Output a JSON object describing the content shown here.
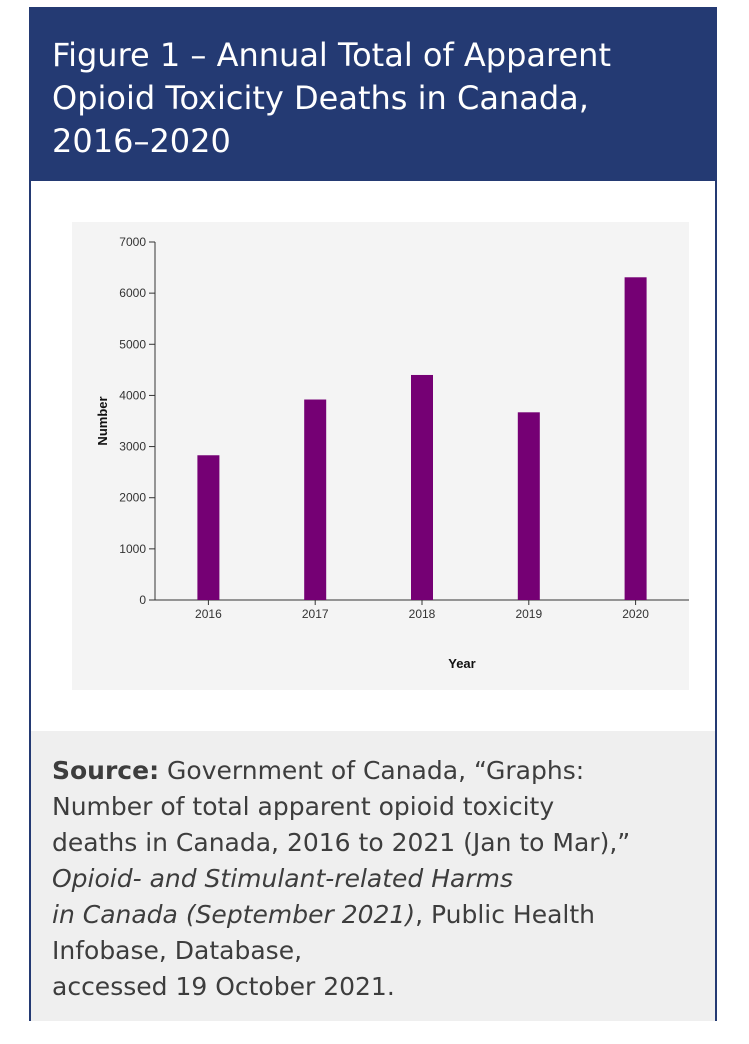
{
  "figure": {
    "title_lines": [
      "Figure 1 – Annual Total of Apparent",
      "Opioid Toxicity Deaths in Canada,",
      "2016–2020"
    ]
  },
  "chart_data": {
    "type": "bar",
    "categories": [
      "2016",
      "2017",
      "2018",
      "2019",
      "2020"
    ],
    "values": [
      2830,
      3920,
      4400,
      3670,
      6310
    ],
    "xlabel": "Year",
    "ylabel": "Number",
    "ylim": [
      0,
      7000
    ],
    "yticks": [
      0,
      1000,
      2000,
      3000,
      4000,
      5000,
      6000,
      7000
    ],
    "bar_color": "#750074",
    "grid": false,
    "legend": "none"
  },
  "source": {
    "label": "Source:",
    "line1_rest": " Government of Canada, “Graphs:",
    "line2": "Number of total apparent opioid toxicity",
    "line3": "deaths in Canada, 2016 to 2021 (Jan to Mar),”",
    "line4_italic": "Opioid- and Stimulant-related Harms",
    "line5_italic": "in Canada (September 2021)",
    "line5_rest": ", Public Health",
    "line6": "Infobase, Database,",
    "line7": "accessed 19 October 2021."
  },
  "colors": {
    "header_bg": "#243a73",
    "bar": "#750074",
    "source_bg": "#efefef",
    "chart_bg": "#f4f4f4"
  }
}
